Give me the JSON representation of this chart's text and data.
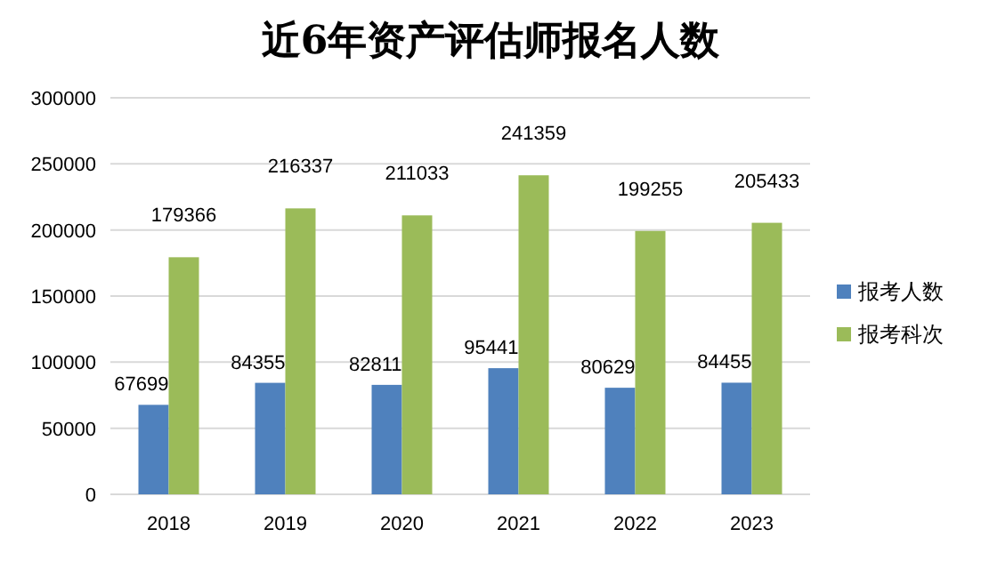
{
  "chart_data": {
    "type": "bar",
    "title": "近6年资产评估师报名人数",
    "categories": [
      "2018",
      "2019",
      "2020",
      "2021",
      "2022",
      "2023"
    ],
    "series": [
      {
        "name": "报考人数",
        "color": "#4f81bd",
        "values": [
          67699,
          84355,
          82811,
          95441,
          80629,
          84455
        ]
      },
      {
        "name": "报考科次",
        "color": "#9bbb59",
        "values": [
          179366,
          216337,
          211033,
          241359,
          199255,
          205433
        ]
      }
    ],
    "ylim": [
      0,
      300000
    ],
    "yticks": [
      0,
      50000,
      100000,
      150000,
      200000,
      250000,
      300000
    ],
    "grid": "y",
    "legend": "right",
    "data_labels": true
  }
}
